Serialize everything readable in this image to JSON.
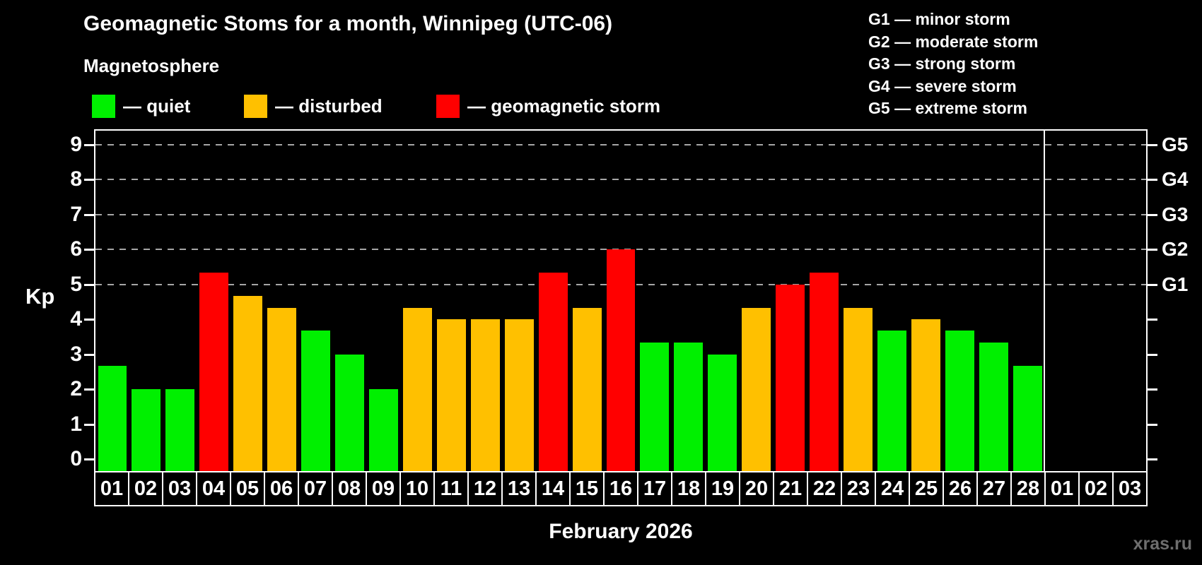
{
  "page": {
    "title": "Geomagnetic Stoms for a month, Winnipeg (UTC-06)",
    "month_label": "February 2026",
    "watermark": "xras.ru"
  },
  "legend": {
    "heading": "Magnetosphere",
    "items": [
      {
        "name": "quiet",
        "label": "— quiet",
        "color": "#00F000"
      },
      {
        "name": "disturbed",
        "label": "— disturbed",
        "color": "#FFC000"
      },
      {
        "name": "storm",
        "label": "— geomagnetic storm",
        "color": "#FF0000"
      }
    ]
  },
  "g_legend": [
    "G1 — minor storm",
    "G2 — moderate storm",
    "G3 — strong storm",
    "G4 — severe storm",
    "G5 — extreme storm"
  ],
  "chart_data": {
    "type": "bar",
    "title": "Geomagnetic Stoms for a month, Winnipeg (UTC-06)",
    "xlabel": "February 2026",
    "ylabel": "Kp",
    "ylim": [
      0,
      9.4
    ],
    "grid": "dashed horizontal at Kp 5-9 only",
    "y_ticks": [
      0,
      1,
      2,
      3,
      4,
      5,
      6,
      7,
      8,
      9
    ],
    "right_axis_labels": [
      {
        "label": "G1",
        "kp": 5
      },
      {
        "label": "G2",
        "kp": 6
      },
      {
        "label": "G3",
        "kp": 7
      },
      {
        "label": "G4",
        "kp": 8
      },
      {
        "label": "G5",
        "kp": 9
      }
    ],
    "gridlines_kp": [
      5,
      6,
      7,
      8,
      9
    ],
    "month_boundary_after_index": 27,
    "categories": [
      "01",
      "02",
      "03",
      "04",
      "05",
      "06",
      "07",
      "08",
      "09",
      "10",
      "11",
      "12",
      "13",
      "14",
      "15",
      "16",
      "17",
      "18",
      "19",
      "20",
      "21",
      "22",
      "23",
      "24",
      "25",
      "26",
      "27",
      "28",
      "01",
      "02",
      "03"
    ],
    "series": [
      {
        "name": "Kp index",
        "values": [
          2.67,
          2,
          2,
          5.33,
          4.67,
          4.33,
          3.67,
          3,
          2,
          4.33,
          4,
          4,
          4,
          5.33,
          4.33,
          6,
          3.33,
          3.33,
          3,
          4.33,
          5,
          5.33,
          4.33,
          3.67,
          4,
          3.67,
          3.33,
          2.67,
          null,
          null,
          null
        ],
        "statuses": [
          "quiet",
          "quiet",
          "quiet",
          "storm",
          "disturbed",
          "disturbed",
          "quiet",
          "quiet",
          "quiet",
          "disturbed",
          "disturbed",
          "disturbed",
          "disturbed",
          "storm",
          "disturbed",
          "storm",
          "quiet",
          "quiet",
          "quiet",
          "disturbed",
          "storm",
          "storm",
          "disturbed",
          "quiet",
          "disturbed",
          "quiet",
          "quiet",
          "quiet",
          null,
          null,
          null
        ]
      }
    ],
    "status_colors": {
      "quiet": "#00F000",
      "disturbed": "#FFC000",
      "storm": "#FF0000"
    }
  }
}
